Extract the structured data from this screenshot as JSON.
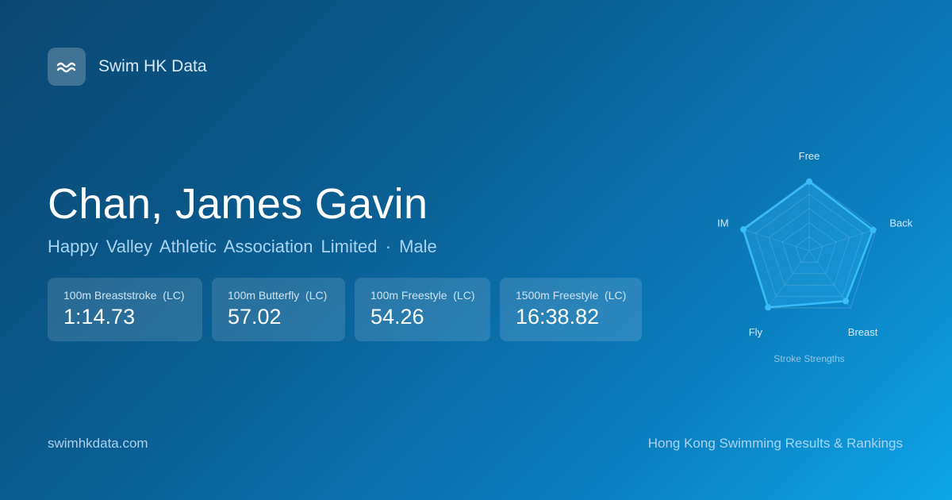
{
  "brand": {
    "name": "Swim HK Data",
    "icon": "waves-icon"
  },
  "swimmer": {
    "name": "Chan, James Gavin",
    "club": "Happy Valley Athletic Association Limited",
    "separator": "·",
    "gender": "Male"
  },
  "best_times": [
    {
      "event": "100m Breaststroke  (LC)",
      "time": "1:14.73"
    },
    {
      "event": "100m Butterfly  (LC)",
      "time": "57.02"
    },
    {
      "event": "100m Freestyle  (LC)",
      "time": "54.26"
    },
    {
      "event": "1500m Freestyle  (LC)",
      "time": "16:38.82"
    }
  ],
  "footer": {
    "site": "swimhkdata.com",
    "tagline": "Hong Kong Swimming Results & Rankings"
  },
  "chart_data": {
    "type": "radar",
    "title": "Stroke Strengths",
    "categories": [
      "Free",
      "Back",
      "Breast",
      "Fly",
      "IM"
    ],
    "values": [
      98,
      95,
      88,
      99,
      98
    ],
    "range": [
      0,
      100
    ],
    "grid_levels": 5,
    "color": "#38bdf8"
  }
}
